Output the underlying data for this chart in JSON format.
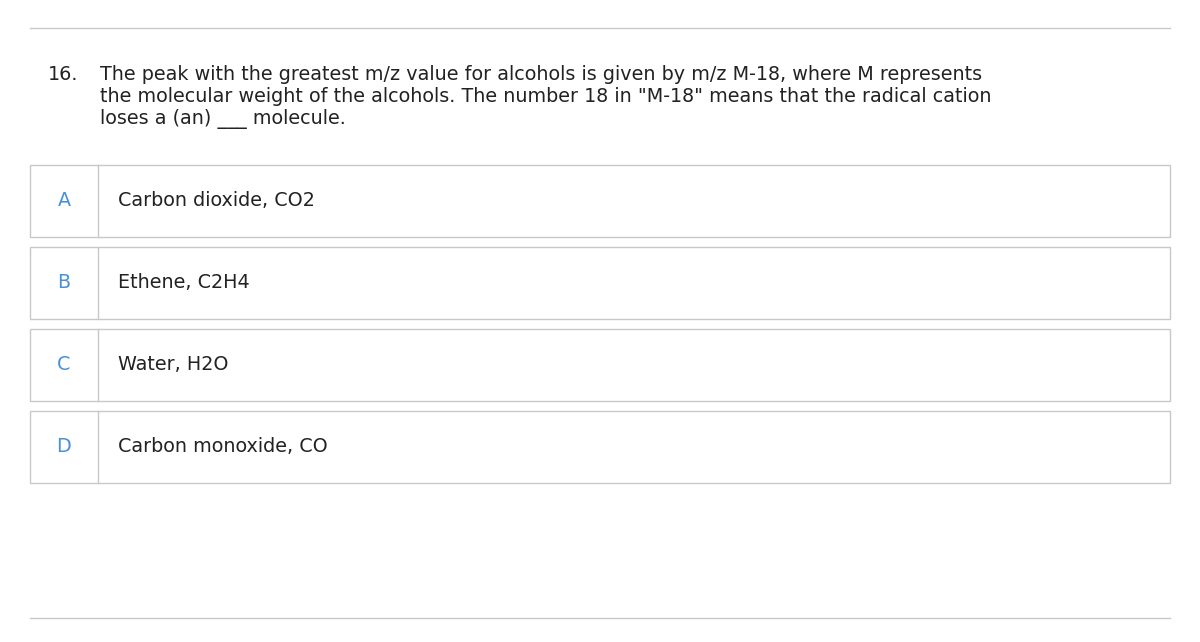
{
  "question_number": "16.",
  "question_text_line1": "The peak with the greatest m/z value for alcohols is given by m/z M-18, where M represents",
  "question_text_line2": "the molecular weight of the alcohols. The number 18 in \"M-18\" means that the radical cation",
  "question_text_line3": "loses a (an) ___ molecule.",
  "options": [
    {
      "label": "A",
      "text": "Carbon dioxide, CO2"
    },
    {
      "label": "B",
      "text": "Ethene, C2H4"
    },
    {
      "label": "C",
      "text": "Water, H2O"
    },
    {
      "label": "D",
      "text": "Carbon monoxide, CO"
    }
  ],
  "bg_color": "#ffffff",
  "border_color": "#c8c8c8",
  "label_color": "#4a90d9",
  "text_color": "#222222",
  "question_color": "#222222",
  "font_size_question": 13.8,
  "font_size_options": 13.8,
  "font_size_label": 13.8,
  "fig_width": 12.0,
  "fig_height": 6.42,
  "dpi": 100
}
